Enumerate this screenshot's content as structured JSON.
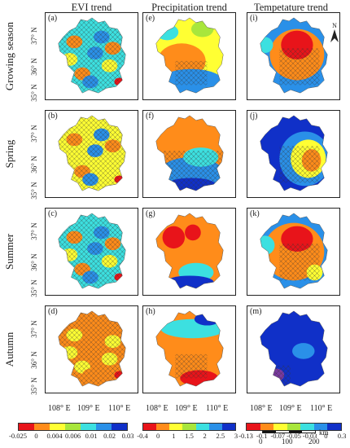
{
  "columns": [
    "EVI trend",
    "Precipitation trend",
    "Tempetature trend"
  ],
  "rows": [
    "Growing season",
    "Spring",
    "Summer",
    "Autumn"
  ],
  "y_ticks": [
    "37° N",
    "36° N",
    "35° N"
  ],
  "x_ticks": [
    "108° E",
    "109° E",
    "110° E"
  ],
  "panel_labels": [
    [
      "(a)",
      "(e)",
      "(i)"
    ],
    [
      "(b)",
      "(f)",
      "(j)"
    ],
    [
      "(c)",
      "(g)",
      "(k)"
    ],
    [
      "(d)",
      "(h)",
      "(m)"
    ]
  ],
  "legends": [
    {
      "colors": [
        "#e8141a",
        "#ff8c1a",
        "#ffff33",
        "#a8e63c",
        "#3ce0e0",
        "#2a90e8",
        "#1030c8"
      ],
      "ticks": [
        "-0.025",
        "0",
        "0.004",
        "0.006",
        "0.01",
        "0.02",
        "0.03"
      ]
    },
    {
      "colors": [
        "#e8141a",
        "#ff8c1a",
        "#ffff33",
        "#a8e63c",
        "#3ce0e0",
        "#2a90e8",
        "#1030c8"
      ],
      "ticks": [
        "-0.4",
        "0",
        "1",
        "1.5",
        "2",
        "2.5",
        "3"
      ]
    },
    {
      "colors": [
        "#e8141a",
        "#ff8c1a",
        "#ffff33",
        "#a8e63c",
        "#3ce0e0",
        "#2a90e8",
        "#1030c8"
      ],
      "ticks": [
        "-0.13",
        "-0.1",
        "-0.07",
        "-0.05",
        "-0.03",
        "0",
        "0.3"
      ]
    }
  ],
  "north_label": "N",
  "scale": {
    "labels": [
      "0",
      "100",
      "200"
    ],
    "unit": "km"
  },
  "colors": {
    "red": "#e8141a",
    "orange": "#ff8c1a",
    "yellow": "#ffff33",
    "lightgreen": "#a8e63c",
    "cyan": "#3ce0e0",
    "lightblue": "#2a90e8",
    "blue": "#1030c8"
  }
}
